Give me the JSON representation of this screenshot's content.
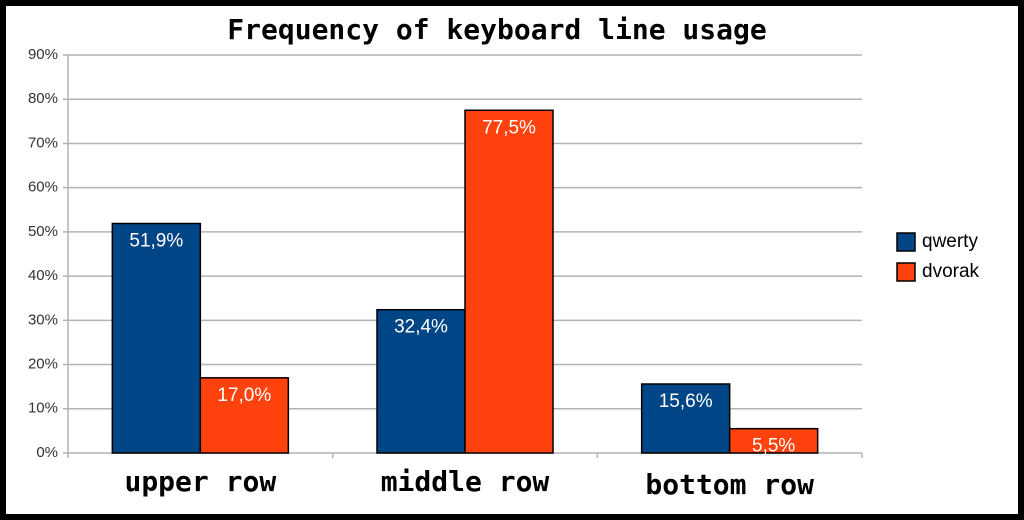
{
  "chart_data": {
    "type": "bar",
    "title": "Frequency of keyboard line usage",
    "categories": [
      "upper row",
      "middle row",
      "bottom row"
    ],
    "series": [
      {
        "name": "qwerty",
        "color": "#004586",
        "values": [
          51.9,
          32.4,
          15.6
        ],
        "value_labels": [
          "51,9%",
          "32,4%",
          "15,6%"
        ]
      },
      {
        "name": "dvorak",
        "color": "#ff420e",
        "values": [
          17.0,
          77.5,
          5.5
        ],
        "value_labels": [
          "17,0%",
          "77,5%",
          "5,5%"
        ]
      }
    ],
    "ylim": [
      0,
      90
    ],
    "yticks": [
      {
        "value": 0,
        "label": "0%"
      },
      {
        "value": 10,
        "label": "10%"
      },
      {
        "value": 20,
        "label": "20%"
      },
      {
        "value": 30,
        "label": "30%"
      },
      {
        "value": 40,
        "label": "40%"
      },
      {
        "value": 50,
        "label": "50%"
      },
      {
        "value": 60,
        "label": "60%"
      },
      {
        "value": 70,
        "label": "70%"
      },
      {
        "value": 80,
        "label": "80%"
      },
      {
        "value": 90,
        "label": "90%"
      }
    ],
    "grid": true,
    "legend": "right"
  }
}
